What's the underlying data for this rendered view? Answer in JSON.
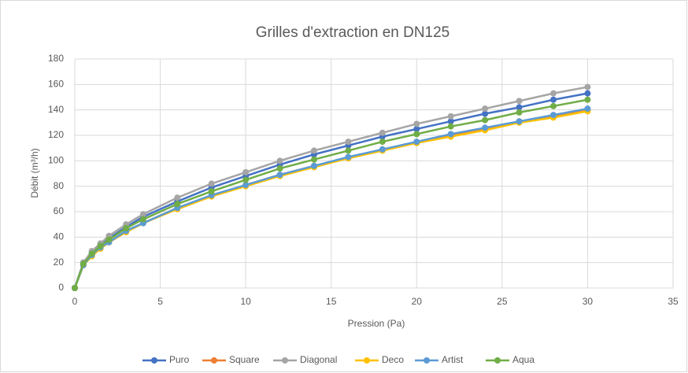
{
  "chart_data": {
    "type": "line",
    "title": "Grilles d'extraction en DN125",
    "x_label": "Pression (Pa)",
    "y_label": "Débit (m³/h)",
    "x": [
      0,
      0.5,
      1,
      1.5,
      2,
      3,
      4,
      6,
      8,
      10,
      12,
      14,
      16,
      18,
      20,
      22,
      24,
      26,
      28,
      30
    ],
    "series": [
      {
        "name": "Puro",
        "color": "#4472c4",
        "values": [
          0,
          20,
          28,
          34,
          39,
          48,
          56,
          68,
          79,
          88,
          97,
          105,
          112,
          119,
          125,
          131,
          137,
          142,
          148,
          153
        ]
      },
      {
        "name": "Square",
        "color": "#ed7d31",
        "values": [
          0,
          18,
          26,
          31,
          36,
          44,
          51,
          63,
          72,
          81,
          89,
          96,
          102,
          109,
          114,
          120,
          125,
          131,
          135,
          140
        ]
      },
      {
        "name": "Diagonal",
        "color": "#a5a5a5",
        "values": [
          0,
          20,
          29,
          35,
          41,
          50,
          58,
          71,
          82,
          91,
          100,
          108,
          115,
          122,
          129,
          135,
          141,
          147,
          153,
          158
        ]
      },
      {
        "name": "Deco",
        "color": "#ffc000",
        "values": [
          0,
          18,
          25,
          31,
          36,
          44,
          51,
          62,
          72,
          80,
          88,
          95,
          102,
          108,
          114,
          119,
          124,
          130,
          134,
          139
        ]
      },
      {
        "name": "Artist",
        "color": "#5b9bd5",
        "values": [
          0,
          18,
          26,
          32,
          36,
          45,
          51,
          63,
          73,
          81,
          89,
          96,
          103,
          109,
          115,
          121,
          126,
          131,
          136,
          141
        ]
      },
      {
        "name": "Aqua",
        "color": "#70ad47",
        "values": [
          0,
          19,
          27,
          33,
          38,
          47,
          54,
          66,
          76,
          85,
          94,
          101,
          108,
          115,
          121,
          127,
          132,
          138,
          143,
          148
        ]
      }
    ],
    "xlim": [
      0,
      35
    ],
    "xticks": [
      0,
      5,
      10,
      15,
      20,
      25,
      30,
      35
    ],
    "ylim": [
      0,
      180
    ],
    "yticks": [
      0,
      20,
      40,
      60,
      80,
      100,
      120,
      140,
      160,
      180
    ],
    "grid": true,
    "legend": "bottom"
  }
}
